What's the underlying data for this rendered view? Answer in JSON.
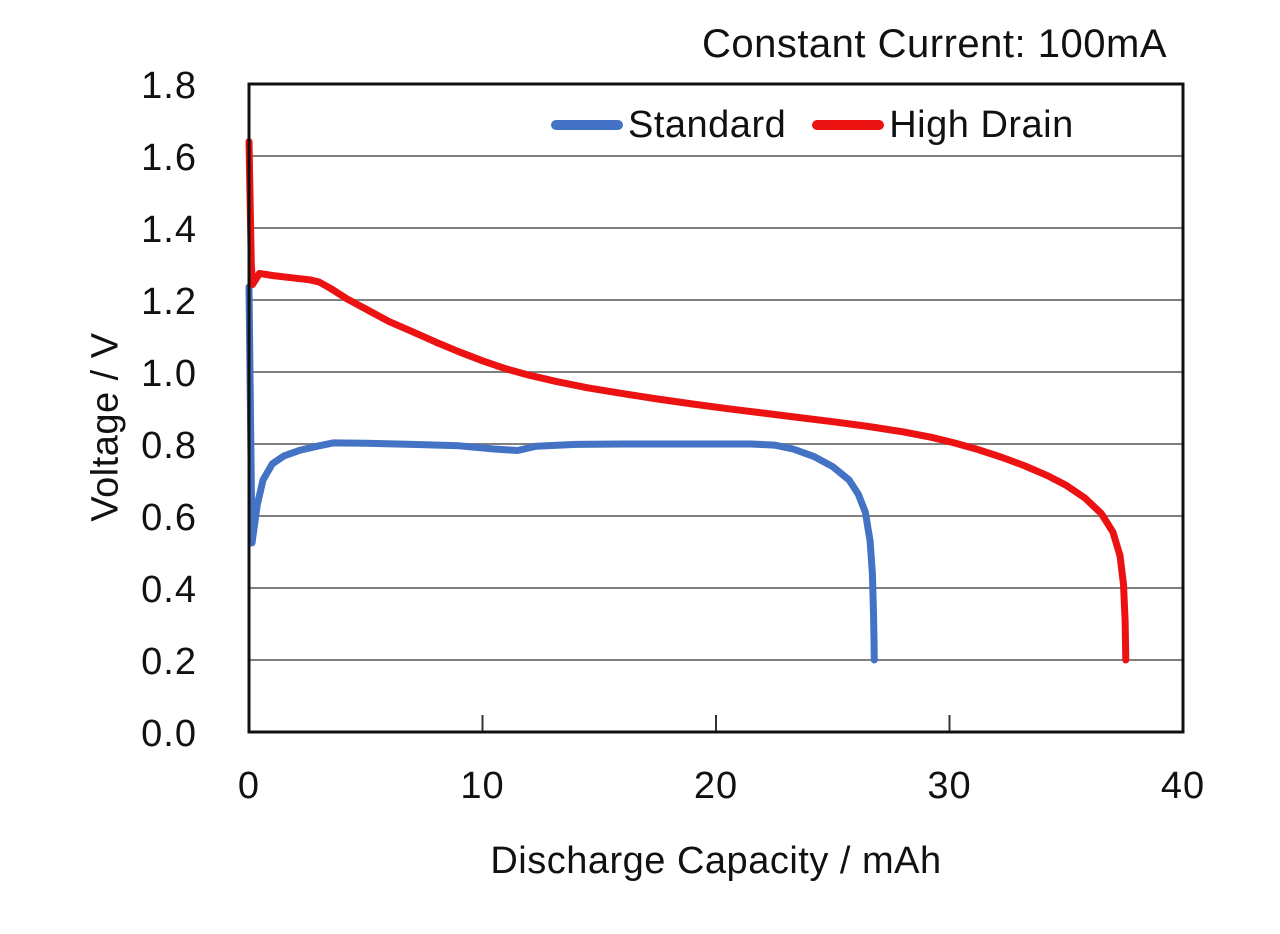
{
  "chart_data": {
    "type": "line",
    "title": "Constant Current: 100mA",
    "xlabel": "Discharge Capacity / mAh",
    "ylabel": "Voltage / V",
    "xlim": [
      0,
      40
    ],
    "ylim": [
      0.0,
      1.8
    ],
    "x_tick_values": [
      0,
      10,
      20,
      30,
      40
    ],
    "x_tick_labels": [
      "0",
      "10",
      "20",
      "30",
      "40"
    ],
    "x_inner_tick_values": [
      10,
      20,
      30
    ],
    "y_tick_values": [
      1.8,
      1.6,
      1.4,
      1.2,
      1.0,
      0.8,
      0.6,
      0.4,
      0.2,
      0.0
    ],
    "y_tick_labels": [
      "1.8",
      "1.6",
      "1.4",
      "1.2",
      "1.0",
      "0.8",
      "0.6",
      "0.4",
      "0.2",
      "0.0"
    ],
    "y_gridline_values": [
      0.2,
      0.4,
      0.6,
      0.8,
      1.0,
      1.2,
      1.4,
      1.6
    ],
    "grid": "horizontal-only",
    "gridline_color": "#808080",
    "axis_color": "#111111",
    "background_color": "#ffffff",
    "legend_position": "inside-top",
    "series": [
      {
        "name": "Standard",
        "color": "#4472C4",
        "points": [
          [
            0,
            1.236
          ],
          [
            0.05,
            0.95
          ],
          [
            0.13,
            0.525
          ],
          [
            0.35,
            0.63
          ],
          [
            0.6,
            0.7
          ],
          [
            1.0,
            0.745
          ],
          [
            1.5,
            0.767
          ],
          [
            2.2,
            0.783
          ],
          [
            3.0,
            0.795
          ],
          [
            3.6,
            0.803
          ],
          [
            5.0,
            0.802
          ],
          [
            7.0,
            0.799
          ],
          [
            9.0,
            0.795
          ],
          [
            10.5,
            0.786
          ],
          [
            11.5,
            0.782
          ],
          [
            12.3,
            0.794
          ],
          [
            14.0,
            0.799
          ],
          [
            16.0,
            0.8
          ],
          [
            18.0,
            0.8
          ],
          [
            20.0,
            0.8
          ],
          [
            21.5,
            0.8
          ],
          [
            22.5,
            0.797
          ],
          [
            23.3,
            0.786
          ],
          [
            24.2,
            0.765
          ],
          [
            25.0,
            0.737
          ],
          [
            25.7,
            0.7
          ],
          [
            26.1,
            0.66
          ],
          [
            26.4,
            0.61
          ],
          [
            26.6,
            0.53
          ],
          [
            26.7,
            0.44
          ],
          [
            26.75,
            0.32
          ],
          [
            26.78,
            0.2
          ]
        ]
      },
      {
        "name": "High Drain",
        "color": "#EC1212",
        "points": [
          [
            0,
            1.64
          ],
          [
            0.1,
            1.3
          ],
          [
            0.15,
            1.243
          ],
          [
            0.45,
            1.274
          ],
          [
            1.0,
            1.268
          ],
          [
            1.8,
            1.262
          ],
          [
            2.6,
            1.256
          ],
          [
            3.0,
            1.25
          ],
          [
            3.5,
            1.232
          ],
          [
            4.2,
            1.203
          ],
          [
            5.0,
            1.175
          ],
          [
            6.0,
            1.14
          ],
          [
            7.0,
            1.112
          ],
          [
            8.0,
            1.083
          ],
          [
            9.0,
            1.056
          ],
          [
            10.0,
            1.031
          ],
          [
            11.0,
            1.009
          ],
          [
            12.0,
            0.991
          ],
          [
            13.2,
            0.973
          ],
          [
            14.5,
            0.956
          ],
          [
            16.0,
            0.94
          ],
          [
            17.5,
            0.925
          ],
          [
            19.0,
            0.911
          ],
          [
            20.5,
            0.898
          ],
          [
            22.0,
            0.886
          ],
          [
            23.5,
            0.874
          ],
          [
            25.0,
            0.862
          ],
          [
            26.5,
            0.849
          ],
          [
            28.0,
            0.834
          ],
          [
            29.2,
            0.819
          ],
          [
            30.2,
            0.803
          ],
          [
            31.2,
            0.785
          ],
          [
            32.2,
            0.764
          ],
          [
            33.2,
            0.74
          ],
          [
            34.2,
            0.712
          ],
          [
            35.0,
            0.685
          ],
          [
            35.8,
            0.65
          ],
          [
            36.5,
            0.607
          ],
          [
            37.0,
            0.555
          ],
          [
            37.3,
            0.49
          ],
          [
            37.45,
            0.41
          ],
          [
            37.52,
            0.31
          ],
          [
            37.55,
            0.2
          ]
        ]
      }
    ]
  }
}
